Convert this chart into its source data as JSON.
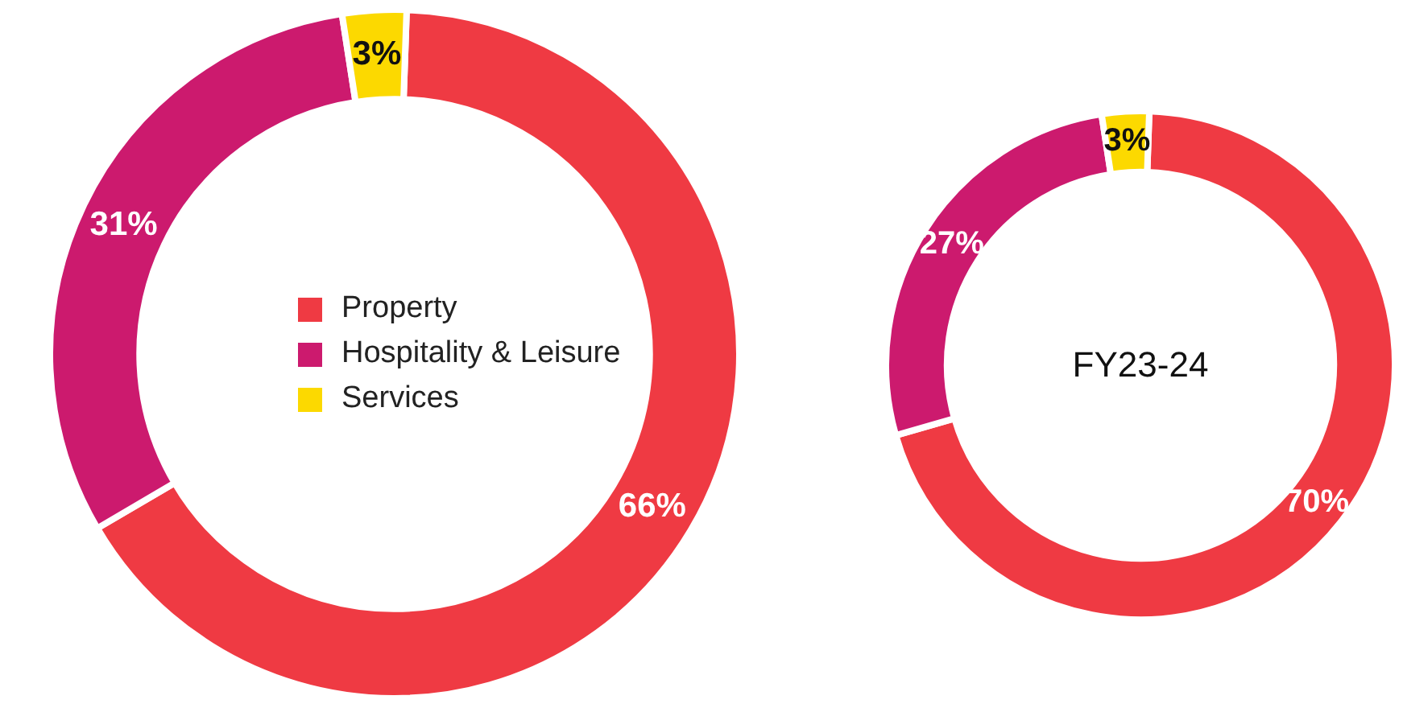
{
  "chart_data": [
    {
      "type": "donut",
      "categories": [
        "Property",
        "Hospitality & Leisure",
        "Services"
      ],
      "values": [
        66,
        31,
        3
      ],
      "colors": [
        "#ef3a43",
        "#cc1a6e",
        "#fcd900"
      ],
      "value_labels": [
        "66%",
        "31%",
        "3%"
      ],
      "legend": "center"
    },
    {
      "type": "donut",
      "title": "FY23-24",
      "categories": [
        null,
        null,
        null
      ],
      "values": [
        70,
        27,
        3
      ],
      "colors": [
        "#ef3a43",
        "#cc1a6e",
        "#fcd900"
      ],
      "value_labels": [
        "70%",
        "27%",
        "3%"
      ]
    }
  ]
}
